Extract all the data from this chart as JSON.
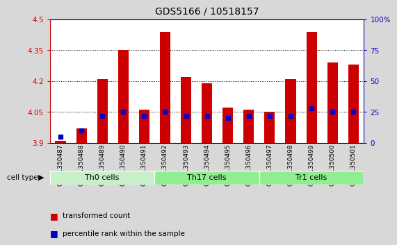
{
  "title": "GDS5166 / 10518157",
  "samples": [
    "GSM1350487",
    "GSM1350488",
    "GSM1350489",
    "GSM1350490",
    "GSM1350491",
    "GSM1350492",
    "GSM1350493",
    "GSM1350494",
    "GSM1350495",
    "GSM1350496",
    "GSM1350497",
    "GSM1350498",
    "GSM1350499",
    "GSM1350500",
    "GSM1350501"
  ],
  "red_values": [
    3.91,
    3.97,
    4.21,
    4.35,
    4.06,
    4.44,
    4.22,
    4.19,
    4.07,
    4.06,
    4.05,
    4.21,
    4.44,
    4.29,
    4.28
  ],
  "blue_pct": [
    5,
    10,
    22,
    25,
    22,
    25,
    22,
    22,
    20,
    22,
    22,
    22,
    28,
    25,
    25
  ],
  "ylim_left": [
    3.9,
    4.5
  ],
  "yticks_left": [
    3.9,
    4.05,
    4.2,
    4.35,
    4.5
  ],
  "ylim_right": [
    0,
    100
  ],
  "yticks_right": [
    0,
    25,
    50,
    75,
    100
  ],
  "bar_color": "#cc0000",
  "blue_color": "#0000cc",
  "bg_color": "#d8d8d8",
  "plot_bg": "#ffffff",
  "left_axis_color": "#cc0000",
  "right_axis_color": "#0000cc",
  "bar_width": 0.5,
  "group_labels": [
    "Th0 cells",
    "Th17 cells",
    "Tr1 cells"
  ],
  "group_starts": [
    0,
    5,
    10
  ],
  "group_ends": [
    5,
    10,
    15
  ],
  "group_colors": [
    "#c8f0c8",
    "#90ee90",
    "#90ee90"
  ]
}
